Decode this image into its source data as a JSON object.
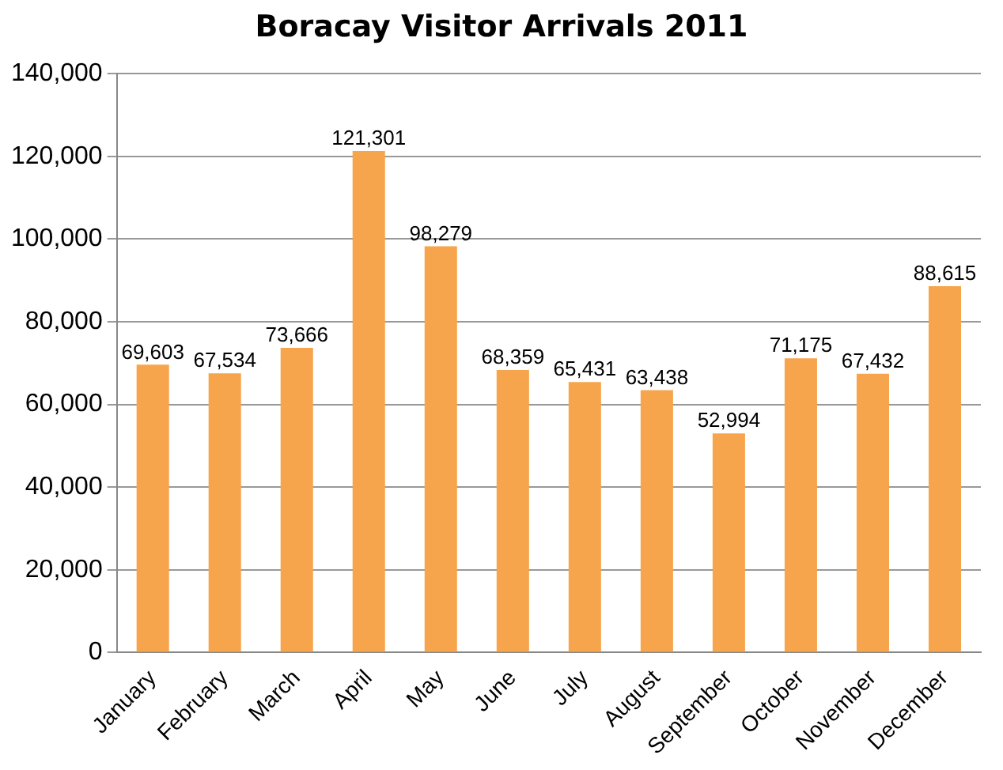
{
  "chart_data": {
    "type": "bar",
    "title": "Boracay Visitor Arrivals 2011",
    "categories": [
      "January",
      "February",
      "March",
      "April",
      "May",
      "June",
      "July",
      "August",
      "September",
      "October",
      "November",
      "December"
    ],
    "values": [
      69603,
      67534,
      73666,
      121301,
      98279,
      68359,
      65431,
      63438,
      52994,
      71175,
      67432,
      88615
    ],
    "value_labels": [
      "69,603",
      "67,534",
      "73,666",
      "121,301",
      "98,279",
      "68,359",
      "65,431",
      "63,438",
      "52,994",
      "71,175",
      "67,432",
      "88,615"
    ],
    "color": "#f7a54c",
    "ylim": [
      0,
      140000
    ],
    "yticks": [
      0,
      {
        "value": 20000,
        "label": "20,000"
      },
      {
        "value": 40000,
        "label": "40,000"
      },
      {
        "value": 60000,
        "label": "60,000"
      },
      {
        "value": 80000,
        "label": "80,000"
      },
      {
        "value": 100000,
        "label": "100,000"
      },
      {
        "value": 120000,
        "label": "120,000"
      },
      {
        "value": 140000,
        "label": "140,000"
      }
    ],
    "grid": "y"
  }
}
